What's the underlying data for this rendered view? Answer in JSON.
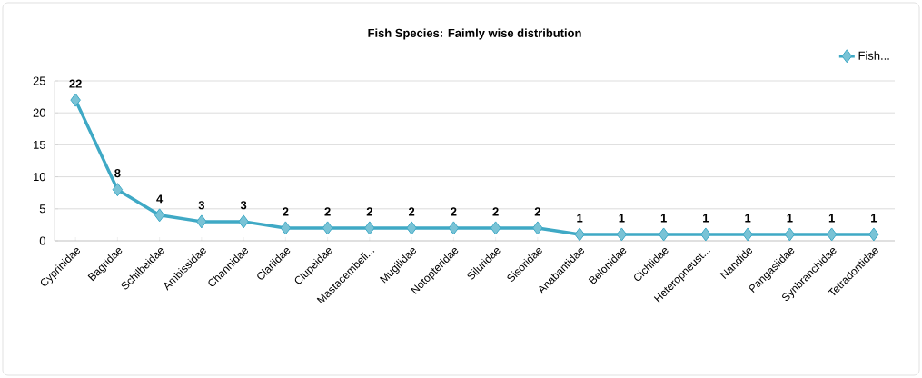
{
  "chart_data": {
    "type": "line",
    "title": "Fish Species: Faimly wise distribution",
    "categories": [
      "Cyprinidae",
      "Bagridae",
      "Schilbeidae",
      "Ambissidae",
      "Channidae",
      "Clariidae",
      "Clupeidae",
      "Mastacembeli...",
      "Mugilidae",
      "Notopteridae",
      "Siluridae",
      "Sisoridae",
      "Anabantidae",
      "Belonidae",
      "Cichlidae",
      "Heteropneust...",
      "Nandide",
      "Pangasiidae",
      "Synbranchidae",
      "Tetradontidae"
    ],
    "series": [
      {
        "name": "Fish...",
        "color": "#3fa9c5",
        "values": [
          22,
          8,
          4,
          3,
          3,
          2,
          2,
          2,
          2,
          2,
          2,
          2,
          1,
          1,
          1,
          1,
          1,
          1,
          1,
          1
        ]
      }
    ],
    "ylim": [
      0,
      25
    ],
    "yticks": [
      0,
      5,
      10,
      15,
      20,
      25
    ],
    "grid": "y",
    "legend": "top right",
    "marker": "diamond",
    "line_style": "solid",
    "data_labels": true
  }
}
